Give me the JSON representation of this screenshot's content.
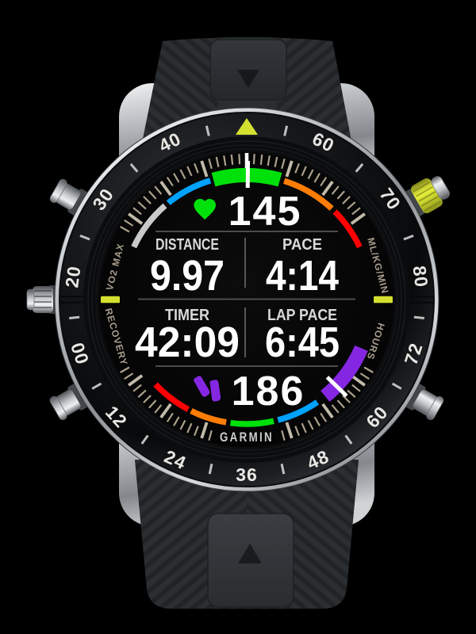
{
  "device": {
    "brand": "GARMIN",
    "kind": "multisport-smartwatch"
  },
  "bezel": {
    "triangle_color": "#d4e030",
    "number_color": "#e9e7e2",
    "vo2_scale_numbers": [
      "20",
      "30",
      "40",
      "60",
      "70",
      "80"
    ],
    "recovery_scale_numbers": [
      "00",
      "12",
      "24",
      "36",
      "48",
      "60",
      "72"
    ]
  },
  "rehaut": {
    "top_left": "VO2 MAX",
    "top_right": "ML/KG/MIN",
    "bottom_left": "RECOVERY",
    "bottom_right": "HOURS",
    "text_color": "#a79d8d",
    "accent_dash_color": "#d4e030"
  },
  "screen": {
    "heart_rate": {
      "value": "145",
      "icon": "heart",
      "icon_color": "#00e10b"
    },
    "cadence": {
      "value": "186",
      "icon": "running-shoes",
      "icon_color": "#8527e2"
    },
    "metrics": [
      {
        "label": "DISTANCE",
        "value": "9.97"
      },
      {
        "label": "PACE",
        "value": "4:14"
      },
      {
        "label": "TIMER",
        "value": "42:09"
      },
      {
        "label": "LAP PACE",
        "value": "6:45"
      }
    ],
    "brand": "GARMIN",
    "hr_gauge": {
      "radius": 157,
      "marker_deg": 0.5,
      "marker_color": "#ffffff",
      "segments": [
        {
          "color": "#c9c9c9",
          "from": -65,
          "to": -41
        },
        {
          "color": "#00a2ff",
          "from": -39,
          "to": -17
        },
        {
          "color": "#00e10b",
          "from": -15.5,
          "to": 15.5,
          "active": true
        },
        {
          "color": "#ff7d05",
          "from": 17.5,
          "to": 43
        },
        {
          "color": "#ff0004",
          "from": 45,
          "to": 65
        }
      ]
    },
    "cadence_gauge": {
      "radius": 157,
      "marker_deg": 134,
      "marker_color": "#ffffff",
      "segments": [
        {
          "color": "#ff0004",
          "from": 208,
          "to": 227
        },
        {
          "color": "#ff7d05",
          "from": 189.5,
          "to": 206.5
        },
        {
          "color": "#00e10b",
          "from": 167.5,
          "to": 187.5
        },
        {
          "color": "#00a2ff",
          "from": 145.5,
          "to": 165.5
        },
        {
          "color": "#8527e2",
          "from": 113,
          "to": 141,
          "active": true
        }
      ]
    },
    "tick_ring": {
      "thin_color": "#b3a995",
      "thick_color": "#cdc4b3",
      "major_color": "#ffffff"
    }
  }
}
